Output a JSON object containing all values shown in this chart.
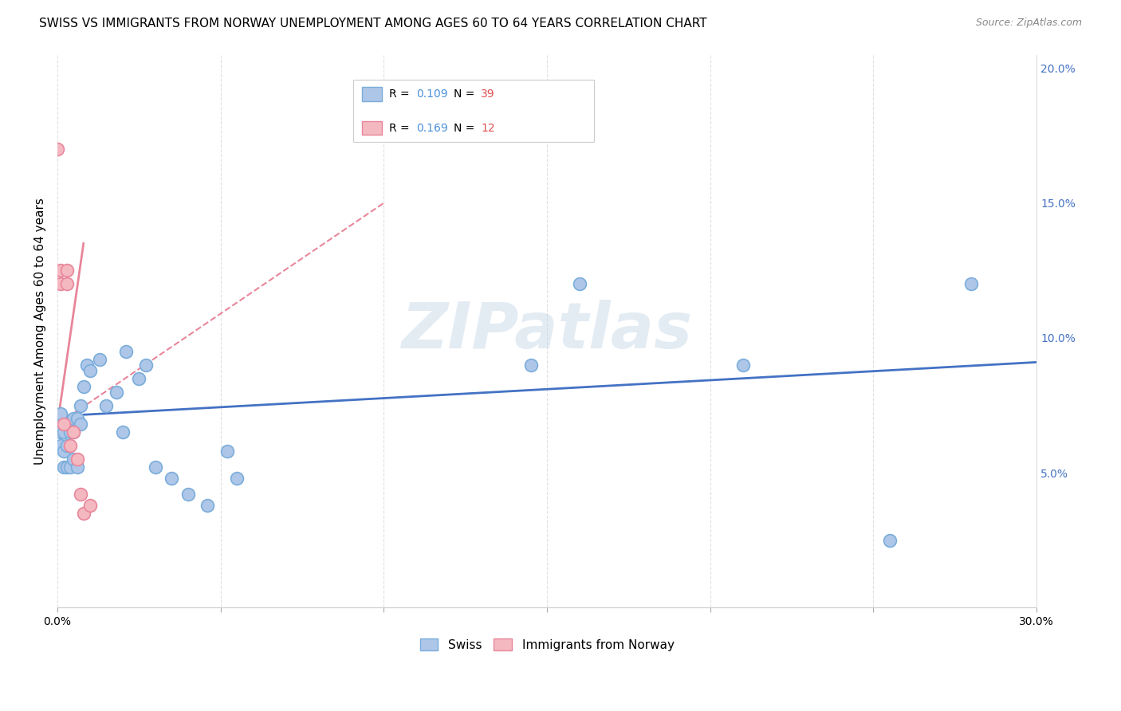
{
  "title": "SWISS VS IMMIGRANTS FROM NORWAY UNEMPLOYMENT AMONG AGES 60 TO 64 YEARS CORRELATION CHART",
  "source": "Source: ZipAtlas.com",
  "ylabel": "Unemployment Among Ages 60 to 64 years",
  "watermark": "ZIPatlas",
  "xlim": [
    0.0,
    0.3
  ],
  "ylim": [
    0.0,
    0.205
  ],
  "xticks": [
    0.0,
    0.05,
    0.1,
    0.15,
    0.2,
    0.25,
    0.3
  ],
  "yticks_right": [
    0.05,
    0.1,
    0.15,
    0.2
  ],
  "swiss_x": [
    0.0,
    0.001,
    0.001,
    0.001,
    0.002,
    0.002,
    0.002,
    0.003,
    0.003,
    0.004,
    0.004,
    0.005,
    0.005,
    0.005,
    0.006,
    0.006,
    0.007,
    0.007,
    0.008,
    0.009,
    0.01,
    0.013,
    0.015,
    0.018,
    0.02,
    0.021,
    0.025,
    0.027,
    0.03,
    0.035,
    0.04,
    0.046,
    0.052,
    0.055,
    0.145,
    0.16,
    0.21,
    0.255,
    0.28
  ],
  "swiss_y": [
    0.068,
    0.072,
    0.065,
    0.06,
    0.065,
    0.058,
    0.052,
    0.06,
    0.052,
    0.065,
    0.052,
    0.07,
    0.065,
    0.055,
    0.07,
    0.052,
    0.075,
    0.068,
    0.082,
    0.09,
    0.088,
    0.092,
    0.075,
    0.08,
    0.065,
    0.095,
    0.085,
    0.09,
    0.052,
    0.048,
    0.042,
    0.038,
    0.058,
    0.048,
    0.09,
    0.12,
    0.09,
    0.025,
    0.12
  ],
  "norway_x": [
    0.0,
    0.001,
    0.001,
    0.002,
    0.003,
    0.003,
    0.004,
    0.005,
    0.006,
    0.007,
    0.008,
    0.01
  ],
  "norway_y": [
    0.17,
    0.125,
    0.12,
    0.068,
    0.125,
    0.12,
    0.06,
    0.065,
    0.055,
    0.042,
    0.035,
    0.038
  ],
  "swiss_trendline_x": [
    0.0,
    0.3
  ],
  "swiss_trendline_y": [
    0.071,
    0.091
  ],
  "norway_trendline_x": [
    0.0,
    0.1
  ],
  "norway_trendline_y": [
    0.068,
    0.15
  ],
  "swiss_color": "#aec6e8",
  "swiss_edge_color": "#7aaddb",
  "norway_color": "#f4b8c1",
  "norway_edge_color": "#e8869a",
  "trendline_swiss_color": "#4472c4",
  "trendline_norway_color": "#e8869a",
  "background_color": "#ffffff",
  "grid_color": "#e0e0e0",
  "marker_size": 130,
  "title_fontsize": 11,
  "label_fontsize": 11,
  "tick_fontsize": 10,
  "legend_r_color": "#4a90d9",
  "legend_n_color": "#e05050"
}
